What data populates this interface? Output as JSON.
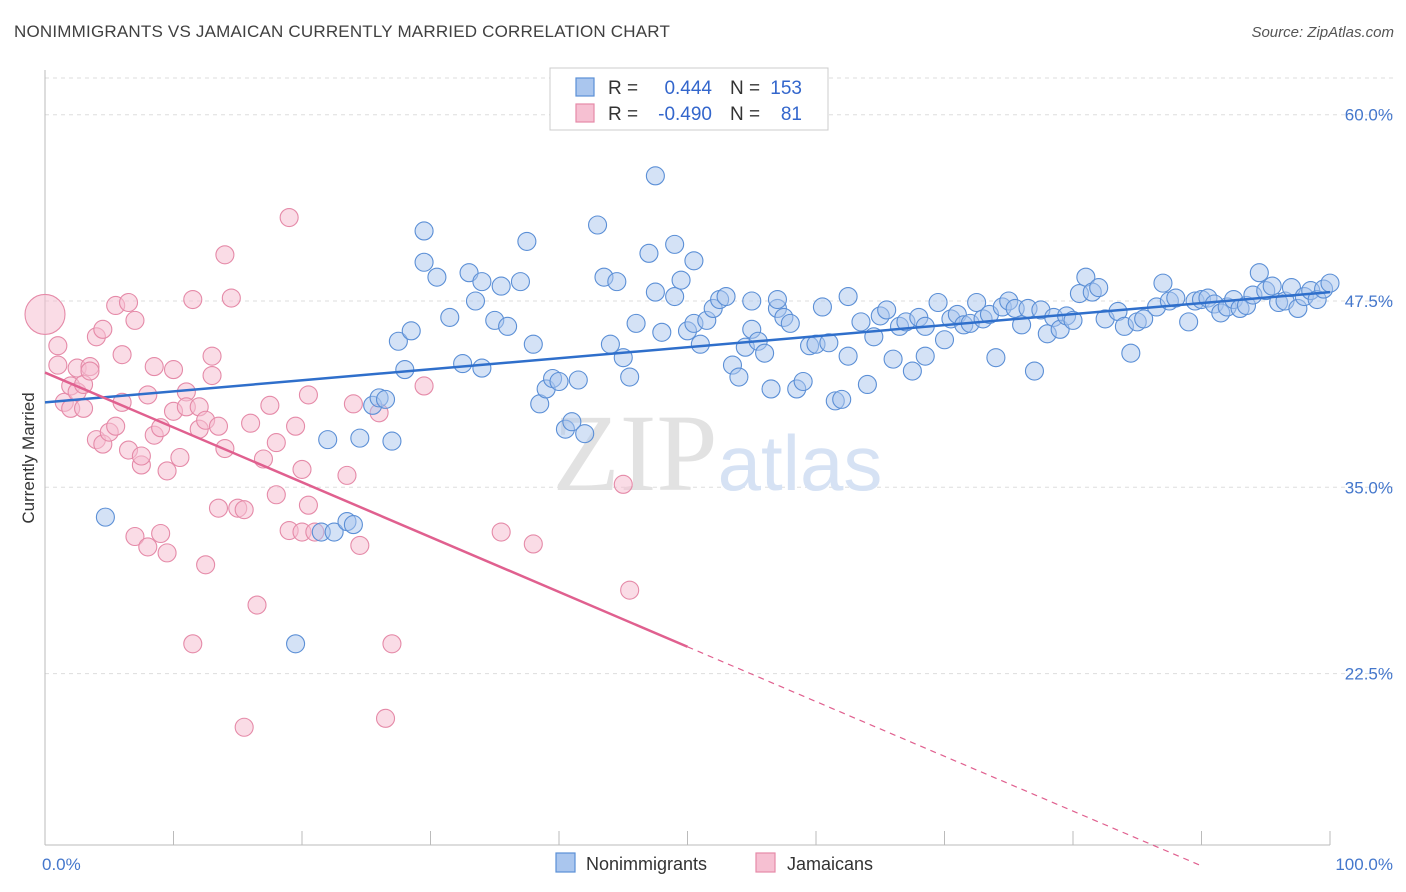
{
  "header": {
    "title": "NONIMMIGRANTS VS JAMAICAN CURRENTLY MARRIED CORRELATION CHART",
    "source": "Source: ZipAtlas.com"
  },
  "watermark": {
    "zip": "ZIP",
    "atlas": "atlas"
  },
  "colors": {
    "blue": "#5b8fd6",
    "blue_fill": "#aac6ee",
    "blue_line": "#2f6fcb",
    "pink": "#e58aa8",
    "pink_fill": "#f6c0d2",
    "pink_line": "#e0608f",
    "tick_text": "#4477cc",
    "grid": "#dddddd"
  },
  "legend": {
    "rows": [
      {
        "r_label": "R = ",
        "r_value": "0.444",
        "n_label": "N = ",
        "n_value": "153"
      },
      {
        "r_label": "R = ",
        "r_value": "-0.490",
        "n_label": "N = ",
        "n_value": "81"
      }
    ]
  },
  "chart_data": {
    "type": "scatter",
    "title": "NONIMMIGRANTS VS JAMAICAN CURRENTLY MARRIED CORRELATION CHART",
    "xlabel": "",
    "ylabel": "Currently Married",
    "xlim": [
      0,
      100
    ],
    "ylim": [
      11.0,
      63.0
    ],
    "x_tick_labels": [
      "0.0%",
      "100.0%"
    ],
    "y_ticks": [
      22.5,
      35.0,
      47.5,
      60.0
    ],
    "y_tick_labels": [
      "22.5%",
      "35.0%",
      "47.5%",
      "60.0%"
    ],
    "grid": "horizontal dashed",
    "legend_position": "top-center",
    "series": [
      {
        "name": "Nonimmigrants",
        "r": 0.444,
        "n": 153,
        "trend": {
          "x": [
            0,
            100
          ],
          "y": [
            40.7,
            48.1
          ]
        },
        "points": [
          [
            4.7,
            33.0
          ],
          [
            19.5,
            24.5
          ],
          [
            21.5,
            32.0
          ],
          [
            22.0,
            38.2
          ],
          [
            22.5,
            32.0
          ],
          [
            23.5,
            32.7
          ],
          [
            24.0,
            32.5
          ],
          [
            24.5,
            38.3
          ],
          [
            25.5,
            40.5
          ],
          [
            26.0,
            41.0
          ],
          [
            26.5,
            40.9
          ],
          [
            27.0,
            38.1
          ],
          [
            27.5,
            44.8
          ],
          [
            28.0,
            42.9
          ],
          [
            28.5,
            45.5
          ],
          [
            29.5,
            50.1
          ],
          [
            29.5,
            52.2
          ],
          [
            30.5,
            49.1
          ],
          [
            31.5,
            46.4
          ],
          [
            32.5,
            43.3
          ],
          [
            33.0,
            49.4
          ],
          [
            33.5,
            47.5
          ],
          [
            34.0,
            43.0
          ],
          [
            34.0,
            48.8
          ],
          [
            35.0,
            46.2
          ],
          [
            35.5,
            48.5
          ],
          [
            36.0,
            45.8
          ],
          [
            37.0,
            48.8
          ],
          [
            37.5,
            51.5
          ],
          [
            38.0,
            44.6
          ],
          [
            38.5,
            40.6
          ],
          [
            39.0,
            41.6
          ],
          [
            39.5,
            42.3
          ],
          [
            40.0,
            42.1
          ],
          [
            40.5,
            38.9
          ],
          [
            41.0,
            39.4
          ],
          [
            41.5,
            42.2
          ],
          [
            42.0,
            38.6
          ],
          [
            43.0,
            52.6
          ],
          [
            43.5,
            49.1
          ],
          [
            44.0,
            44.6
          ],
          [
            44.5,
            48.8
          ],
          [
            45.0,
            43.7
          ],
          [
            45.5,
            42.4
          ],
          [
            46.0,
            46.0
          ],
          [
            47.0,
            50.7
          ],
          [
            47.5,
            55.9
          ],
          [
            47.5,
            48.1
          ],
          [
            48.0,
            45.4
          ],
          [
            49.0,
            47.8
          ],
          [
            49.0,
            51.3
          ],
          [
            49.5,
            48.9
          ],
          [
            50.0,
            45.5
          ],
          [
            50.5,
            46.0
          ],
          [
            50.5,
            50.2
          ],
          [
            51.0,
            44.6
          ],
          [
            51.5,
            46.2
          ],
          [
            52.0,
            47.0
          ],
          [
            52.5,
            47.6
          ],
          [
            53.0,
            47.8
          ],
          [
            53.5,
            43.2
          ],
          [
            54.0,
            42.4
          ],
          [
            54.5,
            44.4
          ],
          [
            55.0,
            47.5
          ],
          [
            55.0,
            45.6
          ],
          [
            55.5,
            44.8
          ],
          [
            56.0,
            44.0
          ],
          [
            56.5,
            41.6
          ],
          [
            57.0,
            47.0
          ],
          [
            57.0,
            47.6
          ],
          [
            57.5,
            46.4
          ],
          [
            58.0,
            46.0
          ],
          [
            58.5,
            41.6
          ],
          [
            59.0,
            42.1
          ],
          [
            59.5,
            44.5
          ],
          [
            60.0,
            44.6
          ],
          [
            60.5,
            47.1
          ],
          [
            61.0,
            44.7
          ],
          [
            61.5,
            40.8
          ],
          [
            62.0,
            40.9
          ],
          [
            62.5,
            47.8
          ],
          [
            62.5,
            43.8
          ],
          [
            63.5,
            46.1
          ],
          [
            64.0,
            41.9
          ],
          [
            64.5,
            45.1
          ],
          [
            65.0,
            46.5
          ],
          [
            65.5,
            46.9
          ],
          [
            66.0,
            43.6
          ],
          [
            66.5,
            45.8
          ],
          [
            67.0,
            46.1
          ],
          [
            67.5,
            42.8
          ],
          [
            68.0,
            46.4
          ],
          [
            68.5,
            43.8
          ],
          [
            68.5,
            45.8
          ],
          [
            69.5,
            47.4
          ],
          [
            70.0,
            44.9
          ],
          [
            70.5,
            46.3
          ],
          [
            71.0,
            46.6
          ],
          [
            71.5,
            45.9
          ],
          [
            72.0,
            46.0
          ],
          [
            72.5,
            47.4
          ],
          [
            73.0,
            46.3
          ],
          [
            73.5,
            46.6
          ],
          [
            74.0,
            43.7
          ],
          [
            74.5,
            47.1
          ],
          [
            75.0,
            47.5
          ],
          [
            75.5,
            47.0
          ],
          [
            76.0,
            45.9
          ],
          [
            76.5,
            47.0
          ],
          [
            77.0,
            42.8
          ],
          [
            77.5,
            46.9
          ],
          [
            78.0,
            45.3
          ],
          [
            78.5,
            46.4
          ],
          [
            79.0,
            45.6
          ],
          [
            79.5,
            46.5
          ],
          [
            80.0,
            46.2
          ],
          [
            80.5,
            48.0
          ],
          [
            81.0,
            49.1
          ],
          [
            81.5,
            48.1
          ],
          [
            82.0,
            48.4
          ],
          [
            82.5,
            46.3
          ],
          [
            83.5,
            46.8
          ],
          [
            84.0,
            45.8
          ],
          [
            84.5,
            44.0
          ],
          [
            85.0,
            46.1
          ],
          [
            85.5,
            46.3
          ],
          [
            86.5,
            47.1
          ],
          [
            87.0,
            48.7
          ],
          [
            87.5,
            47.5
          ],
          [
            88.0,
            47.7
          ],
          [
            89.0,
            46.1
          ],
          [
            89.5,
            47.5
          ],
          [
            90.0,
            47.6
          ],
          [
            90.5,
            47.7
          ],
          [
            91.0,
            47.3
          ],
          [
            91.5,
            46.7
          ],
          [
            92.0,
            47.1
          ],
          [
            92.5,
            47.6
          ],
          [
            93.0,
            47.0
          ],
          [
            93.5,
            47.2
          ],
          [
            94.0,
            47.9
          ],
          [
            94.5,
            49.4
          ],
          [
            95.0,
            48.2
          ],
          [
            95.5,
            48.5
          ],
          [
            96.0,
            47.4
          ],
          [
            96.5,
            47.5
          ],
          [
            97.0,
            48.4
          ],
          [
            97.5,
            47.0
          ],
          [
            98.0,
            47.8
          ],
          [
            98.5,
            48.2
          ],
          [
            99.0,
            47.6
          ],
          [
            99.5,
            48.3
          ],
          [
            100.0,
            48.7
          ]
        ]
      },
      {
        "name": "Jamaicans",
        "r": -0.49,
        "n": 81,
        "trend": {
          "x": [
            0,
            50
          ],
          "y": [
            42.7,
            24.3
          ]
        },
        "trend_dashed": {
          "x": [
            50,
            90
          ],
          "y": [
            24.3,
            9.6
          ]
        },
        "points": [
          [
            0.0,
            46.6
          ],
          [
            1.0,
            44.5
          ],
          [
            1.0,
            43.2
          ],
          [
            1.5,
            40.7
          ],
          [
            2.0,
            41.8
          ],
          [
            2.0,
            40.3
          ],
          [
            2.5,
            43.0
          ],
          [
            2.5,
            41.4
          ],
          [
            3.0,
            40.3
          ],
          [
            3.0,
            41.9
          ],
          [
            3.5,
            43.1
          ],
          [
            3.5,
            42.8
          ],
          [
            4.0,
            45.1
          ],
          [
            4.0,
            38.2
          ],
          [
            4.5,
            45.6
          ],
          [
            4.5,
            37.9
          ],
          [
            5.0,
            38.7
          ],
          [
            5.5,
            39.1
          ],
          [
            5.5,
            47.2
          ],
          [
            6.0,
            43.9
          ],
          [
            6.0,
            40.7
          ],
          [
            6.5,
            47.4
          ],
          [
            6.5,
            37.5
          ],
          [
            7.0,
            46.2
          ],
          [
            7.0,
            31.7
          ],
          [
            7.5,
            36.5
          ],
          [
            7.5,
            37.1
          ],
          [
            8.0,
            41.2
          ],
          [
            8.0,
            31.0
          ],
          [
            8.5,
            38.5
          ],
          [
            8.5,
            43.1
          ],
          [
            9.0,
            39.0
          ],
          [
            9.0,
            31.9
          ],
          [
            9.5,
            36.1
          ],
          [
            9.5,
            30.6
          ],
          [
            10.0,
            42.9
          ],
          [
            10.0,
            40.1
          ],
          [
            10.5,
            37.0
          ],
          [
            11.0,
            41.4
          ],
          [
            11.0,
            40.4
          ],
          [
            11.5,
            47.6
          ],
          [
            11.5,
            24.5
          ],
          [
            12.0,
            40.4
          ],
          [
            12.0,
            38.9
          ],
          [
            12.5,
            39.5
          ],
          [
            12.5,
            29.8
          ],
          [
            13.0,
            42.5
          ],
          [
            13.0,
            43.8
          ],
          [
            13.5,
            39.1
          ],
          [
            13.5,
            33.6
          ],
          [
            14.0,
            37.6
          ],
          [
            14.0,
            50.6
          ],
          [
            14.5,
            47.7
          ],
          [
            15.0,
            33.6
          ],
          [
            15.5,
            33.5
          ],
          [
            15.5,
            18.9
          ],
          [
            16.0,
            39.3
          ],
          [
            16.5,
            27.1
          ],
          [
            17.0,
            36.9
          ],
          [
            17.5,
            40.5
          ],
          [
            18.0,
            38.0
          ],
          [
            18.0,
            34.5
          ],
          [
            19.0,
            53.1
          ],
          [
            19.0,
            32.1
          ],
          [
            19.5,
            39.1
          ],
          [
            20.0,
            36.2
          ],
          [
            20.0,
            32.0
          ],
          [
            20.5,
            41.2
          ],
          [
            20.5,
            33.8
          ],
          [
            21.0,
            32.0
          ],
          [
            23.5,
            35.8
          ],
          [
            24.0,
            40.6
          ],
          [
            24.5,
            31.1
          ],
          [
            26.0,
            40.0
          ],
          [
            26.5,
            19.5
          ],
          [
            27.0,
            24.5
          ],
          [
            29.5,
            41.8
          ],
          [
            35.5,
            32.0
          ],
          [
            38.0,
            31.2
          ],
          [
            45.0,
            35.2
          ],
          [
            45.5,
            28.1
          ]
        ]
      }
    ]
  }
}
